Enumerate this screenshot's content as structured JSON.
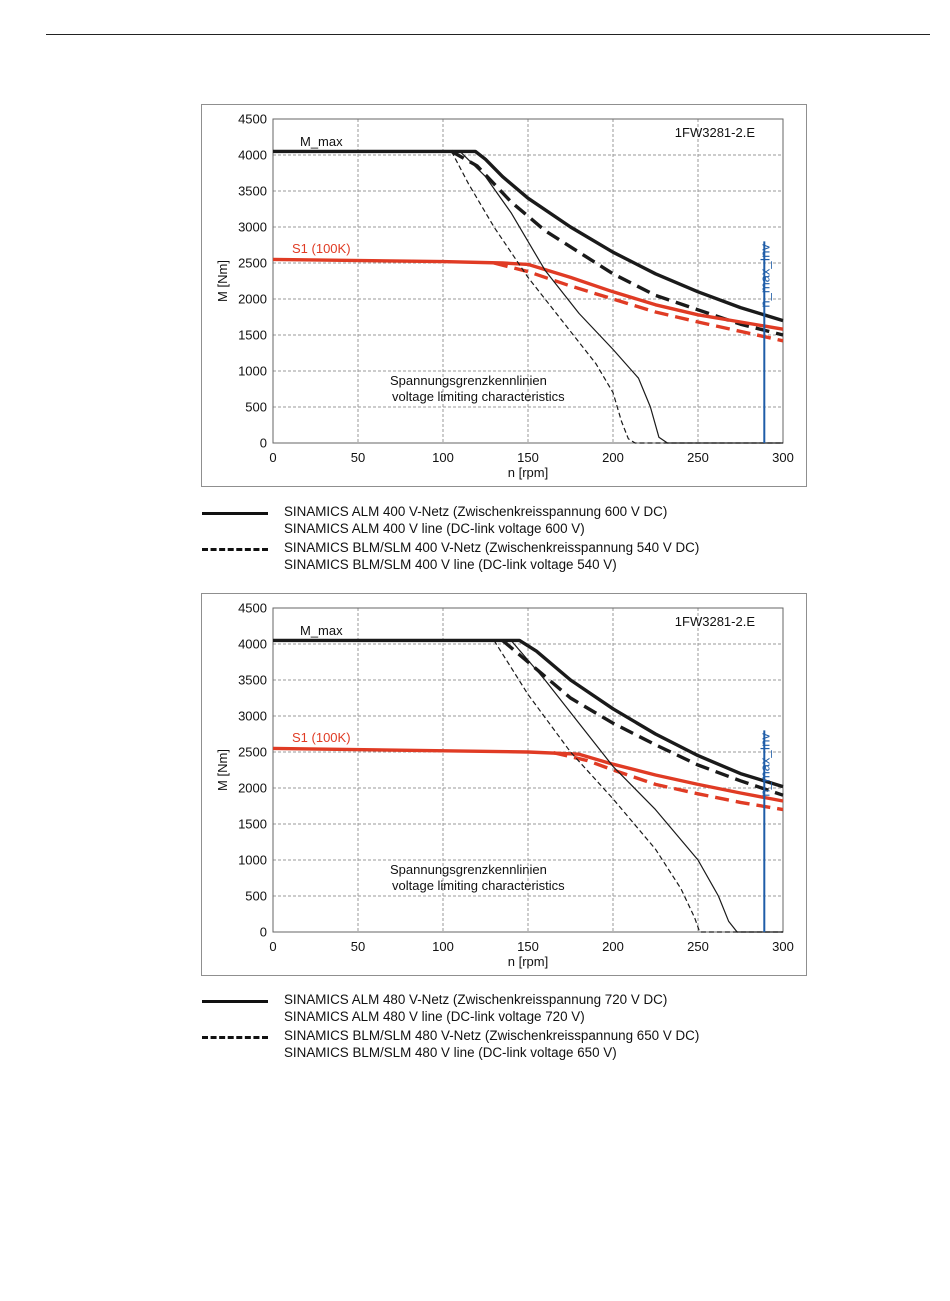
{
  "page": {
    "top_rule": true
  },
  "colors": {
    "black": "#1a1a1a",
    "red": "#e03b24",
    "blue": "#1f5da8",
    "grid": "#9a9a9a"
  },
  "chart_data": [
    {
      "type": "line",
      "title": "1FW3281-2.E",
      "xlabel": "n [rpm]",
      "ylabel": "M [Nm]",
      "xlim": [
        0,
        300
      ],
      "ylim": [
        0,
        4500
      ],
      "xticks": [
        0,
        50,
        100,
        150,
        200,
        250,
        300
      ],
      "yticks": [
        0,
        500,
        1000,
        1500,
        2000,
        2500,
        3000,
        3500,
        4000,
        4500
      ],
      "grid": true,
      "annotations": {
        "m_max": "M_max",
        "s1": "S1 (100K)",
        "n_max": "n_max_Inv",
        "voltage_de": "Spannungsgrenzkennlinien",
        "voltage_en": "voltage limiting characteristics"
      },
      "n_max_inv": 289,
      "series": [
        {
          "key": "mmax_alm",
          "color": "black",
          "style": "solid",
          "width": "bold",
          "points": [
            [
              0,
              4050
            ],
            [
              119,
              4050
            ],
            [
              125,
              3940
            ],
            [
              135,
              3700
            ],
            [
              150,
              3400
            ],
            [
              175,
              3000
            ],
            [
              200,
              2650
            ],
            [
              225,
              2350
            ],
            [
              250,
              2100
            ],
            [
              275,
              1880
            ],
            [
              300,
              1700
            ]
          ]
        },
        {
          "key": "mmax_blm",
          "color": "black",
          "style": "dashed",
          "width": "bold",
          "points": [
            [
              105,
              4050
            ],
            [
              120,
              3850
            ],
            [
              140,
              3350
            ],
            [
              160,
              2950
            ],
            [
              180,
              2650
            ],
            [
              200,
              2350
            ],
            [
              225,
              2050
            ],
            [
              250,
              1850
            ],
            [
              275,
              1650
            ],
            [
              300,
              1500
            ]
          ]
        },
        {
          "key": "s1_alm",
          "color": "red",
          "style": "solid",
          "width": "bold",
          "points": [
            [
              0,
              2550
            ],
            [
              100,
              2520
            ],
            [
              135,
              2500
            ],
            [
              150,
              2480
            ],
            [
              175,
              2300
            ],
            [
              200,
              2100
            ],
            [
              225,
              1920
            ],
            [
              250,
              1780
            ],
            [
              275,
              1680
            ],
            [
              300,
              1580
            ]
          ]
        },
        {
          "key": "s1_blm",
          "color": "red",
          "style": "dashed",
          "width": "bold",
          "points": [
            [
              130,
              2500
            ],
            [
              150,
              2380
            ],
            [
              175,
              2180
            ],
            [
              200,
              2000
            ],
            [
              225,
              1820
            ],
            [
              250,
              1680
            ],
            [
              275,
              1550
            ],
            [
              300,
              1420
            ]
          ]
        },
        {
          "key": "vlim_alm",
          "color": "black",
          "style": "solid",
          "width": "thin",
          "points": [
            [
              110,
              4050
            ],
            [
              125,
              3700
            ],
            [
              140,
              3200
            ],
            [
              160,
              2400
            ],
            [
              180,
              1800
            ],
            [
              200,
              1300
            ],
            [
              215,
              900
            ],
            [
              222,
              500
            ],
            [
              227,
              80
            ],
            [
              232,
              0
            ],
            [
              300,
              0
            ]
          ]
        },
        {
          "key": "vlim_blm",
          "color": "black",
          "style": "dashed",
          "width": "thin",
          "points": [
            [
              105,
              4050
            ],
            [
              115,
              3600
            ],
            [
              130,
              3000
            ],
            [
              150,
              2300
            ],
            [
              170,
              1700
            ],
            [
              190,
              1100
            ],
            [
              200,
              700
            ],
            [
              205,
              300
            ],
            [
              209,
              60
            ],
            [
              213,
              0
            ],
            [
              300,
              0
            ]
          ]
        }
      ]
    },
    {
      "type": "line",
      "title": "1FW3281-2.E",
      "xlabel": "n [rpm]",
      "ylabel": "M [Nm]",
      "xlim": [
        0,
        300
      ],
      "ylim": [
        0,
        4500
      ],
      "xticks": [
        0,
        50,
        100,
        150,
        200,
        250,
        300
      ],
      "yticks": [
        0,
        500,
        1000,
        1500,
        2000,
        2500,
        3000,
        3500,
        4000,
        4500
      ],
      "grid": true,
      "annotations": {
        "m_max": "M_max",
        "s1": "S1 (100K)",
        "n_max": "n_max_Inv",
        "voltage_de": "Spannungsgrenzkennlinien",
        "voltage_en": "voltage limiting characteristics"
      },
      "n_max_inv": 289,
      "series": [
        {
          "key": "mmax_alm",
          "color": "black",
          "style": "solid",
          "width": "bold",
          "points": [
            [
              0,
              4050
            ],
            [
              145,
              4050
            ],
            [
              155,
              3900
            ],
            [
              175,
              3500
            ],
            [
              200,
              3100
            ],
            [
              225,
              2750
            ],
            [
              250,
              2450
            ],
            [
              275,
              2200
            ],
            [
              300,
              2020
            ]
          ]
        },
        {
          "key": "mmax_blm",
          "color": "black",
          "style": "dashed",
          "width": "bold",
          "points": [
            [
              135,
              4050
            ],
            [
              150,
              3750
            ],
            [
              175,
              3250
            ],
            [
              200,
              2900
            ],
            [
              225,
              2600
            ],
            [
              250,
              2320
            ],
            [
              275,
              2100
            ],
            [
              300,
              1900
            ]
          ]
        },
        {
          "key": "s1_alm",
          "color": "red",
          "style": "solid",
          "width": "bold",
          "points": [
            [
              0,
              2550
            ],
            [
              150,
              2500
            ],
            [
              180,
              2470
            ],
            [
              200,
              2330
            ],
            [
              225,
              2180
            ],
            [
              250,
              2050
            ],
            [
              275,
              1930
            ],
            [
              300,
              1820
            ]
          ]
        },
        {
          "key": "s1_blm",
          "color": "red",
          "style": "dashed",
          "width": "bold",
          "points": [
            [
              165,
              2490
            ],
            [
              185,
              2380
            ],
            [
              200,
              2250
            ],
            [
              225,
              2050
            ],
            [
              250,
              1920
            ],
            [
              275,
              1800
            ],
            [
              300,
              1700
            ]
          ]
        },
        {
          "key": "vlim_alm",
          "color": "black",
          "style": "solid",
          "width": "thin",
          "points": [
            [
              140,
              4050
            ],
            [
              160,
              3500
            ],
            [
              180,
              2900
            ],
            [
              200,
              2300
            ],
            [
              225,
              1700
            ],
            [
              250,
              1000
            ],
            [
              262,
              500
            ],
            [
              268,
              150
            ],
            [
              273,
              0
            ],
            [
              300,
              0
            ]
          ]
        },
        {
          "key": "vlim_blm",
          "color": "black",
          "style": "dashed",
          "width": "thin",
          "points": [
            [
              130,
              4050
            ],
            [
              150,
              3300
            ],
            [
              175,
              2500
            ],
            [
              200,
              1850
            ],
            [
              225,
              1150
            ],
            [
              240,
              600
            ],
            [
              248,
              200
            ],
            [
              251,
              0
            ],
            [
              300,
              0
            ]
          ]
        }
      ]
    }
  ],
  "legends": [
    [
      {
        "style": "solid",
        "text": "SINAMICS ALM  400 V-Netz (Zwischenkreisspannung 600 V DC)"
      },
      {
        "style": "none",
        "text": "SINAMICS ALM  400 V line (DC-link voltage 600 V)"
      },
      {
        "style": "dashed",
        "text": "SINAMICS BLM/SLM  400 V-Netz (Zwischenkreisspannung 540 V DC)"
      },
      {
        "style": "none",
        "text": "SINAMICS BLM/SLM  400 V line (DC-link voltage 540 V)"
      }
    ],
    [
      {
        "style": "solid",
        "text": "SINAMICS ALM  480 V-Netz (Zwischenkreisspannung 720 V DC)"
      },
      {
        "style": "none",
        "text": "SINAMICS ALM  480 V line (DC-link voltage 720 V)"
      },
      {
        "style": "dashed",
        "text": "SINAMICS BLM/SLM  480 V-Netz (Zwischenkreisspannung 650 V DC)"
      },
      {
        "style": "none",
        "text": "SINAMICS BLM/SLM  480 V line (DC-link voltage 650 V)"
      }
    ]
  ]
}
